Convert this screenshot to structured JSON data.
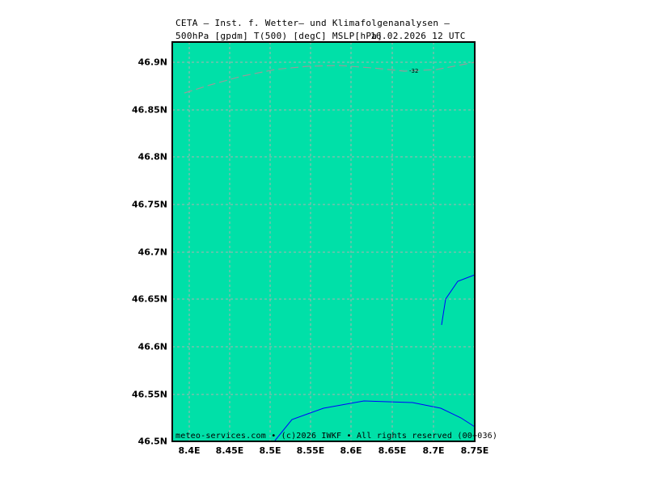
{
  "header": {
    "title_line1": "CETA — Inst. f. Wetter— und Klimafolgenanalysen —",
    "title_line2": "500hPa [gpdm] T(500) [degC] MSLP[hPa]",
    "valid_time": "16.02.2026 12 UTC"
  },
  "axes": {
    "lat_labels": [
      "46.9N",
      "46.85N",
      "46.8N",
      "46.75N",
      "46.7N",
      "46.65N",
      "46.6N",
      "46.55N",
      "46.5N"
    ],
    "lon_labels": [
      "8.4E",
      "8.45E",
      "8.5E",
      "8.55E",
      "8.6E",
      "8.65E",
      "8.7E",
      "8.75E"
    ]
  },
  "map": {
    "land_color": "#00e0a8",
    "grid_color": "#b0b0b0",
    "border_color": "#000000",
    "boundary_color": "#0000ff",
    "isotherm_color": "#9a9a9a",
    "isotherm_label": "-32"
  },
  "footer": {
    "text": "meteo-services.com • (c)2026 IWKF • All rights reserved (00+036)"
  }
}
